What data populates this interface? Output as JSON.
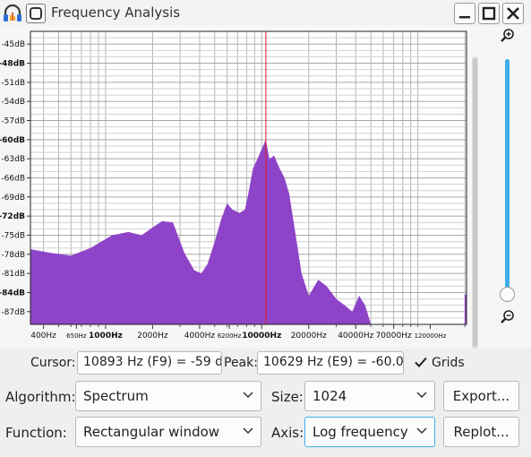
{
  "window": {
    "title": "Frequency Analysis"
  },
  "icons": {
    "app": "headphones-icon",
    "menu": "window-menu-icon",
    "minimize": "minimize-icon",
    "maximize": "maximize-icon",
    "close": "close-icon",
    "zoom_in": "zoom-in-icon",
    "zoom_out": "zoom-out-icon"
  },
  "colors": {
    "spectrum_fill": "#8e44c8",
    "peak_line": "#e02020",
    "accent": "#3daee9"
  },
  "chart_data": {
    "type": "area",
    "x_scale": "log",
    "grid": true,
    "y_tick_labels": [
      "-45dB",
      "-48dB",
      "-51dB",
      "-54dB",
      "-57dB",
      "-60dB",
      "-63dB",
      "-66dB",
      "-69dB",
      "-72dB",
      "-75dB",
      "-78dB",
      "-81dB",
      "-84dB",
      "-87dB"
    ],
    "y_ticks": [
      -45,
      -48,
      -51,
      -54,
      -57,
      -60,
      -63,
      -66,
      -69,
      -72,
      -75,
      -78,
      -81,
      -84,
      -87
    ],
    "ylim": [
      -89,
      -43
    ],
    "x_tick_labels": [
      {
        "f": 400,
        "label": "400Hz",
        "big": true
      },
      {
        "f": 650,
        "label": "650Hz",
        "big": false
      },
      {
        "f": 1000,
        "label": "1000Hz",
        "big": true
      },
      {
        "f": 2000,
        "label": "2000Hz",
        "big": true
      },
      {
        "f": 4000,
        "label": "4000Hz",
        "big": true
      },
      {
        "f": 6200,
        "label": "6200Hz",
        "big": false
      },
      {
        "f": 10000,
        "label": "10000Hz",
        "big": true
      },
      {
        "f": 20000,
        "label": "20000Hz",
        "big": true
      },
      {
        "f": 40000,
        "label": "40000Hz",
        "big": true
      },
      {
        "f": 70000,
        "label": "70000Hz",
        "big": true
      },
      {
        "f": 120000,
        "label": "120000Hz",
        "big": false
      }
    ],
    "xlim": [
      330,
      205000
    ],
    "peak_frequency": 10629,
    "series": [
      {
        "x": [
          330,
          450,
          600,
          800,
          1100,
          1400,
          1700,
          2000,
          2300,
          2700,
          3200,
          3700,
          4100,
          4500,
          5000,
          5500,
          6000,
          6500,
          7200,
          7800,
          8200,
          8800,
          9400,
          10000,
          10600,
          11200,
          12000,
          13000,
          14000,
          15000,
          16500,
          18000,
          20000,
          23000,
          26000,
          30000,
          34000,
          38000,
          42000,
          46000,
          50000
        ],
        "y": [
          -77.2,
          -77.8,
          -78.2,
          -77.0,
          -75.0,
          -74.5,
          -75.0,
          -73.8,
          -72.8,
          -73.0,
          -77.8,
          -80.5,
          -81.0,
          -79.5,
          -76.0,
          -72.5,
          -70.0,
          -71.0,
          -71.5,
          -71.0,
          -68.5,
          -64.5,
          -63.0,
          -61.5,
          -60.0,
          -63.0,
          -62.5,
          -64.5,
          -66.0,
          -68.5,
          -75.0,
          -81.0,
          -84.5,
          -82.0,
          -83.0,
          -85.0,
          -86.0,
          -87.0,
          -84.5,
          -86.0,
          -89.0
        ]
      }
    ]
  },
  "controls": {
    "cursor_label": "Cursor:",
    "cursor_value": "10893 Hz (F9) = -59 d",
    "peak_label": "Peak:",
    "peak_value": "10629 Hz (E9) = -60.0",
    "grids_label": "Grids",
    "grids_checked": true,
    "algorithm_label": "Algorithm:",
    "algorithm_value": "Spectrum",
    "size_label": "Size:",
    "size_value": "1024",
    "export_label": "Export...",
    "function_label": "Function:",
    "function_value": "Rectangular window",
    "axis_label": "Axis:",
    "axis_value": "Log frequency",
    "replot_label": "Replot..."
  }
}
